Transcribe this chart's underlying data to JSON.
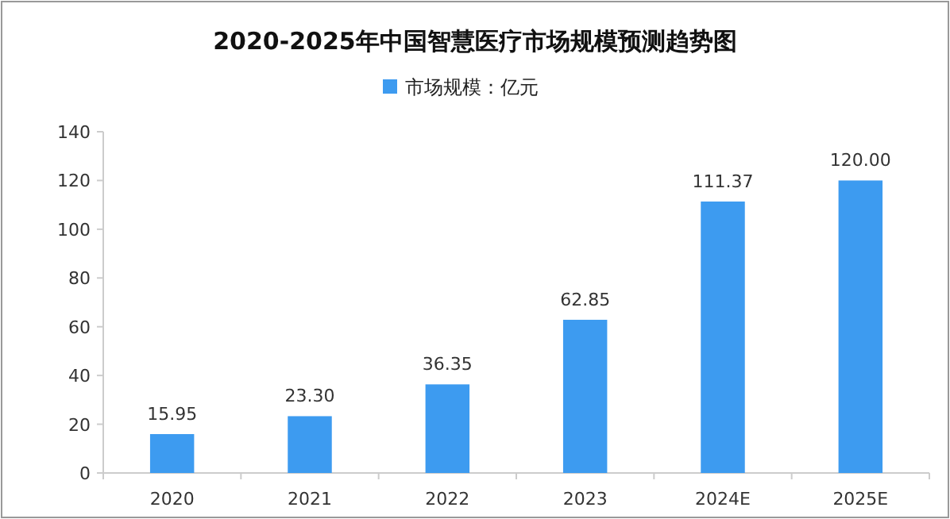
{
  "chart_data": {
    "type": "bar",
    "title": "2020-2025年中国智慧医疗市场规模预测趋势图",
    "categories": [
      "2020",
      "2021",
      "2022",
      "2023",
      "2024E",
      "2025E"
    ],
    "series": [
      {
        "name": "市场规模：亿元",
        "color": "#3d9bf0",
        "values": [
          15.95,
          23.3,
          36.35,
          62.85,
          111.37,
          120.0
        ],
        "value_labels": [
          "15.95",
          "23.30",
          "36.35",
          "62.85",
          "111.37",
          "120.00"
        ]
      }
    ],
    "ylim": [
      0,
      140
    ],
    "yticks": [
      0,
      20,
      40,
      60,
      80,
      100,
      120,
      140
    ],
    "grid": false,
    "legend": "top"
  }
}
